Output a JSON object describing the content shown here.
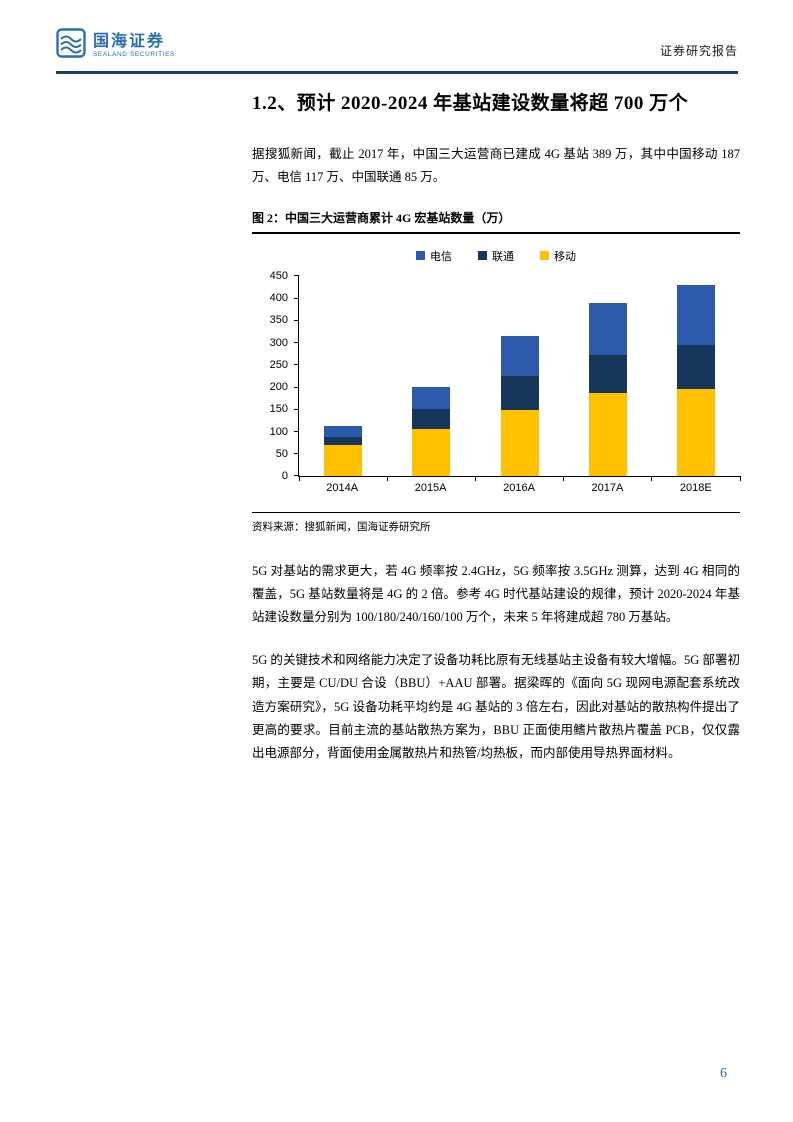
{
  "header": {
    "brand_cn": "国海证券",
    "brand_en": "SEALAND SECURITIES",
    "report_type": "证券研究报告"
  },
  "section": {
    "title": "1.2、预计 2020-2024 年基站建设数量将超 700 万个"
  },
  "paragraphs": {
    "p1": "据搜狐新闻，截止 2017 年，中国三大运营商已建成 4G 基站 389 万，其中中国移动 187 万、电信 117 万、中国联通 85 万。",
    "p2": "5G 对基站的需求更大，若 4G 频率按 2.4GHz，5G 频率按 3.5GHz 测算，达到 4G 相同的覆盖，5G 基站数量将是 4G 的 2 倍。参考 4G 时代基站建设的规律，预计 2020-2024 年基站建设数量分别为 100/180/240/160/100 万个，未来 5 年将建成超 780 万基站。",
    "p3": "5G 的关键技术和网络能力决定了设备功耗比原有无线基站主设备有较大增幅。5G 部署初期，主要是 CU/DU 合设（BBU）+AAU 部署。据梁晖的《面向 5G 现网电源配套系统改造方案研究》，5G 设备功耗平均约是 4G 基站的 3 倍左右，因此对基站的散热构件提出了更高的要求。目前主流的基站散热方案为，BBU 正面使用鳍片散热片覆盖 PCB，仅仅露出电源部分，背面使用金属散热片和热管/均热板，而内部使用导热界面材料。"
  },
  "figure": {
    "caption": "图 2：中国三大运营商累计 4G 宏基站数量（万）",
    "source": "资料来源：搜狐新闻，国海证券研究所"
  },
  "chart_data": {
    "type": "bar",
    "subtype": "stacked",
    "categories": [
      "2014A",
      "2015A",
      "2016A",
      "2017A",
      "2018E"
    ],
    "series": [
      {
        "name": "电信",
        "color": "#2d5bab",
        "values": [
          25,
          50,
          90,
          117,
          135
        ]
      },
      {
        "name": "联通",
        "color": "#16365c",
        "values": [
          18,
          45,
          77,
          85,
          100
        ]
      },
      {
        "name": "移动",
        "color": "#ffc000",
        "values": [
          70,
          105,
          148,
          187,
          195
        ]
      }
    ],
    "stack_bottom_to_top": [
      "移动",
      "联通",
      "电信"
    ],
    "title": "中国三大运营商累计 4G 宏基站数量（万）",
    "xlabel": "",
    "ylabel": "",
    "ylim": [
      0,
      450
    ],
    "ytick_step": 50,
    "grid": false,
    "legend_position": "top"
  },
  "footer": {
    "page_number": "6"
  },
  "colors": {
    "header_rule": "#1f3a6e",
    "brand_blue": "#2a6db5",
    "page_number_blue": "#2a6db5",
    "series_telecom": "#2d5bab",
    "series_unicom": "#16365c",
    "series_mobile": "#ffc000"
  }
}
